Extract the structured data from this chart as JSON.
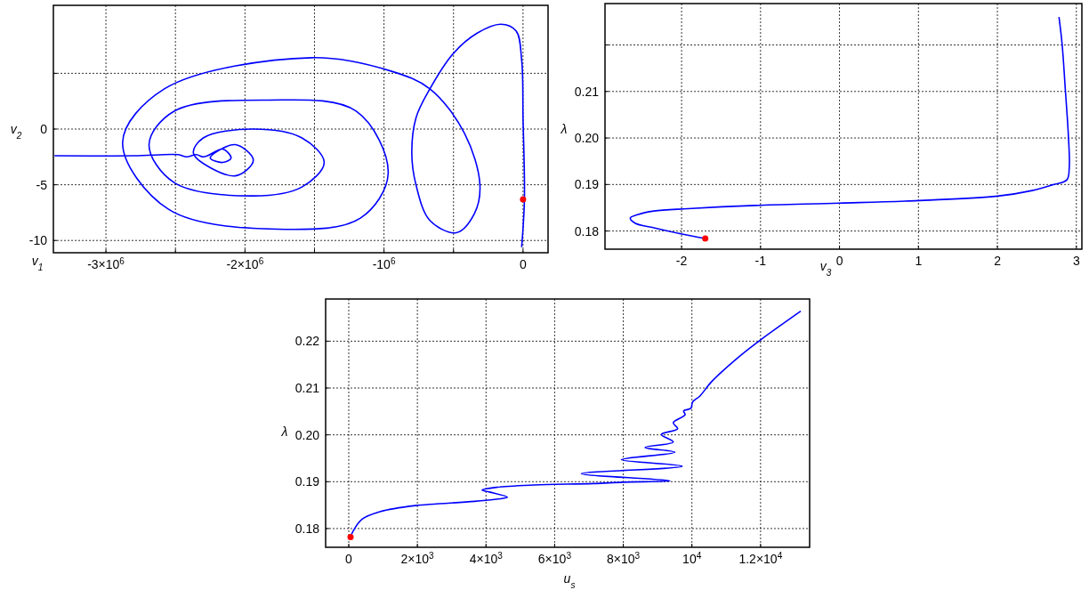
{
  "chart_data": [
    {
      "type": "line",
      "xlabel": "v$_{1}$",
      "ylabel": "v$_{2}$",
      "grid": true,
      "xlim": [
        -3378000,
        180000
      ],
      "ylim": [
        -11.1,
        11.1
      ],
      "xticks": [
        {
          "value": -3000000,
          "label": "-3×10$^{6}$"
        },
        {
          "value": -2500000,
          "label": null
        },
        {
          "value": -2000000,
          "label": "-2×10$^{6}$"
        },
        {
          "value": -1500000,
          "label": null
        },
        {
          "value": -1000000,
          "label": "-10$^{6}$"
        },
        {
          "value": -500000,
          "label": null
        },
        0
      ],
      "yticks": [
        -10,
        -5,
        0,
        {
          "value": 5,
          "label": null
        }
      ],
      "series": [
        {
          "type": "line",
          "color": "#0000ff",
          "x": [
            -3370000,
            -2800000,
            -2480000,
            -2420000,
            -2350000,
            -2300000,
            -2270000,
            -2160000,
            -2100000,
            -2160000,
            -2250000,
            -2070000,
            -1940000,
            -2070000,
            -2370000,
            -2300000,
            -1940000,
            -1590000,
            -1430000,
            -1590000,
            -1940000,
            -2510000,
            -2690000,
            -2510000,
            -1840000,
            -1200000,
            -970000,
            -1170000,
            -1710000,
            -2550000,
            -2880000,
            -2580000,
            -1520000,
            -950000,
            -670000,
            -420000,
            -310000,
            -350000,
            -480000,
            -670000,
            -770000,
            -800000,
            -770000,
            -670000,
            -500000,
            -330000,
            -160000,
            -50000,
            -10000,
            0,
            10000,
            -10000
          ],
          "values": [
            -2.4,
            -2.4,
            -2.3,
            -2.5,
            -2.3,
            -2.5,
            -2.4,
            -1.8,
            -2.6,
            -3.0,
            -2.6,
            -1.4,
            -2.8,
            -4.2,
            -2.2,
            -0.8,
            0,
            -0.8,
            -3.0,
            -5.2,
            -6.0,
            -4.8,
            -1.4,
            1.6,
            2.6,
            1.6,
            -4.0,
            -8.0,
            -9.0,
            -7.2,
            -1.2,
            3.6,
            6.4,
            5.2,
            3.6,
            -0.4,
            -5.0,
            -7.6,
            -9.3,
            -8.2,
            -5.0,
            -2.2,
            1.0,
            3.6,
            6.8,
            8.6,
            9.4,
            8.8,
            6.2,
            1.0,
            -6.3,
            -10.6
          ]
        },
        {
          "type": "scatter",
          "color": "#ff0000",
          "x": [
            0
          ],
          "values": [
            -6.3
          ]
        }
      ]
    },
    {
      "type": "line",
      "xlabel": "v$_{3}$",
      "ylabel": "λ",
      "grid": true,
      "xlim": [
        -2.97,
        3.07
      ],
      "ylim": [
        0.1761,
        0.2289
      ],
      "xticks": [
        -2,
        -1,
        0,
        1,
        2,
        3
      ],
      "yticks": [
        0.18,
        0.19,
        {
          "value": 0.2,
          "label": "0.20"
        },
        0.21,
        {
          "value": 0.22,
          "label": null
        }
      ],
      "series": [
        {
          "type": "line",
          "color": "#0000ff",
          "x": [
            -1.7,
            -2.01,
            -2.35,
            -2.59,
            -2.65,
            -2.56,
            -2.35,
            -1.92,
            -1.07,
            0,
            1.07,
            2.0,
            2.44,
            2.69,
            2.88,
            2.91,
            2.9,
            2.86,
            2.82,
            2.78
          ],
          "values": [
            0.1784,
            0.1794,
            0.1807,
            0.1817,
            0.1828,
            0.1835,
            0.1843,
            0.1848,
            0.1855,
            0.186,
            0.1866,
            0.1875,
            0.1887,
            0.1899,
            0.191,
            0.1936,
            0.2002,
            0.2105,
            0.2201,
            0.226
          ]
        },
        {
          "type": "scatter",
          "color": "#ff0000",
          "x": [
            -1.7
          ],
          "values": [
            0.1784
          ]
        }
      ]
    },
    {
      "type": "line",
      "xlabel": "u$_{s}$",
      "ylabel": "λ",
      "grid": true,
      "xlim": [
        -674,
        13430
      ],
      "ylim": [
        0.176,
        0.229
      ],
      "xticks": [
        0,
        {
          "value": 2000,
          "label": "2×10$^{3}$"
        },
        {
          "value": 4000,
          "label": "4×10$^{3}$"
        },
        {
          "value": 6000,
          "label": "6×10$^{3}$"
        },
        {
          "value": 8000,
          "label": "8×10$^{3}$"
        },
        {
          "value": 10000,
          "label": "10$^{4}$"
        },
        {
          "value": 12000,
          "label": "1.2×10$^{4}$"
        }
      ],
      "yticks": [
        0.18,
        0.19,
        {
          "value": 0.2,
          "label": "0.20"
        },
        0.21,
        0.22
      ],
      "series": [
        {
          "type": "line",
          "color": "#0000ff",
          "x": [
            52,
            130,
            389,
            907,
            1943,
            3670,
            4534,
            4620,
            4100,
            3886,
            4300,
            5397,
            7124,
            7987,
            9369,
            6779,
            9715,
            7944,
            9499,
            8635,
            9456,
            9110,
            9585,
            9456,
            9801,
            9758,
            9974,
            10018,
            10234,
            10580,
            11443,
            12005,
            13171
          ],
          "values": [
            0.1782,
            0.1795,
            0.182,
            0.1836,
            0.1849,
            0.1858,
            0.1865,
            0.1867,
            0.1878,
            0.1882,
            0.1888,
            0.1893,
            0.1896,
            0.1899,
            0.1902,
            0.1917,
            0.1933,
            0.1947,
            0.1963,
            0.1973,
            0.1985,
            0.2001,
            0.2013,
            0.2026,
            0.2043,
            0.2051,
            0.2057,
            0.207,
            0.2083,
            0.2114,
            0.2171,
            0.2203,
            0.2264
          ]
        },
        {
          "type": "scatter",
          "color": "#ff0000",
          "x": [
            52
          ],
          "values": [
            0.1782
          ]
        }
      ]
    }
  ]
}
